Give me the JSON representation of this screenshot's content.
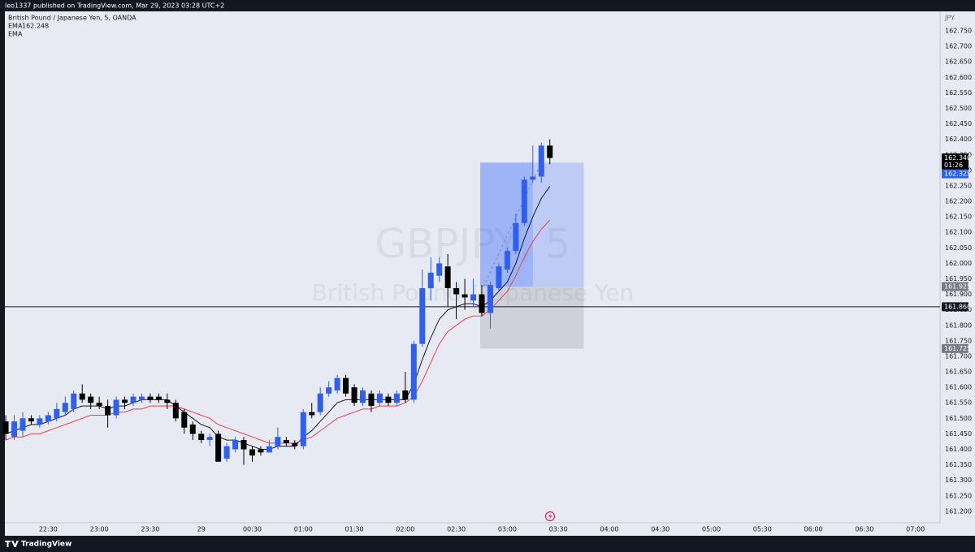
{
  "header": {
    "text": "leo1337 published on TradingView.com, Mar 29, 2023 03:28 UTC+2"
  },
  "footer": {
    "logo": "TradingView"
  },
  "chart_data": {
    "type": "candlestick",
    "title": "British Pound / Japanese Yen, 5, OANDA",
    "watermark": {
      "symbol": "GBPJPY, 5",
      "name": "British Pound / Japanese Yen"
    },
    "currency": "JPY",
    "up_color": "#2f5ff0",
    "down_color": "#000000",
    "categories": [
      null,
      null,
      null,
      null,
      null,
      "22:30",
      null,
      null,
      null,
      null,
      null,
      "23:00",
      null,
      null,
      null,
      null,
      null,
      "23:30",
      null,
      null,
      null,
      null,
      null,
      "29",
      null,
      null,
      null,
      null,
      null,
      "00:30",
      null,
      null,
      null,
      null,
      null,
      "01:00",
      null,
      null,
      null,
      null,
      null,
      "01:30",
      null,
      null,
      null,
      null,
      null,
      "02:00",
      null,
      null,
      null,
      null,
      null,
      "02:30",
      null,
      null,
      null,
      null,
      null,
      "03:00",
      null,
      null,
      null,
      null,
      null,
      "03:30",
      null,
      null,
      null,
      null,
      null,
      "04:00",
      null,
      null,
      null,
      null,
      null,
      "04:30",
      null,
      null,
      null,
      null,
      null,
      "05:00",
      null,
      null,
      null,
      null,
      null,
      "05:30",
      null,
      null,
      null,
      null,
      null,
      "06:00",
      null,
      null,
      null,
      null,
      null,
      "06:30",
      null,
      null,
      null,
      null,
      null,
      "07:00"
    ],
    "open": [
      161.49,
      161.44,
      161.46,
      161.5,
      161.48,
      161.49,
      161.5,
      161.52,
      161.53,
      161.58,
      161.57,
      161.55,
      161.54,
      161.51,
      161.56,
      161.55,
      161.56,
      161.57,
      161.57,
      161.56,
      161.55,
      161.52,
      161.48,
      161.45,
      161.43,
      161.45,
      161.37,
      161.4,
      161.43,
      161.4,
      161.4,
      161.39,
      161.41,
      161.43,
      161.42,
      161.41,
      161.52,
      161.52,
      161.58,
      161.59,
      161.63,
      161.6,
      161.55,
      161.58,
      161.55,
      161.57,
      161.55,
      161.59,
      161.56,
      161.74,
      161.92,
      161.96,
      161.99,
      161.92,
      161.9,
      161.88,
      161.9,
      161.84,
      161.92,
      161.98,
      162.04,
      162.13,
      162.27,
      162.28,
      162.38,
      null,
      null,
      null,
      null,
      null,
      null,
      null,
      null,
      null,
      null,
      null,
      null,
      null,
      null,
      null,
      null,
      null,
      null,
      null,
      null,
      null,
      null,
      null,
      null,
      null,
      null,
      null,
      null,
      null,
      null,
      null,
      null,
      null,
      null,
      null,
      null,
      null,
      null,
      null,
      null,
      null,
      null,
      null
    ],
    "high": [
      161.51,
      161.51,
      161.52,
      161.51,
      161.51,
      161.52,
      161.55,
      161.57,
      161.59,
      161.61,
      161.58,
      161.57,
      161.56,
      161.57,
      161.57,
      161.58,
      161.58,
      161.58,
      161.58,
      161.58,
      161.56,
      161.53,
      161.49,
      161.46,
      161.45,
      161.46,
      161.42,
      161.44,
      161.44,
      161.41,
      161.41,
      161.43,
      161.47,
      161.44,
      161.43,
      161.53,
      161.55,
      161.6,
      161.62,
      161.64,
      161.64,
      161.61,
      161.6,
      161.59,
      161.59,
      161.58,
      161.59,
      161.65,
      161.75,
      161.98,
      162.02,
      162.02,
      162.03,
      161.94,
      161.95,
      161.95,
      161.93,
      161.94,
      162.0,
      162.05,
      162.16,
      162.28,
      162.38,
      162.39,
      162.4,
      null,
      null,
      null,
      null,
      null,
      null,
      null,
      null,
      null,
      null,
      null,
      null,
      null,
      null,
      null,
      null,
      null,
      null,
      null,
      null,
      null,
      null,
      null,
      null,
      null,
      null,
      null,
      null,
      null,
      null,
      null,
      null,
      null,
      null,
      null,
      null,
      null,
      null,
      null,
      null,
      null,
      null,
      null
    ],
    "low": [
      161.43,
      161.43,
      161.44,
      161.48,
      161.47,
      161.48,
      161.49,
      161.51,
      161.52,
      161.55,
      161.53,
      161.53,
      161.47,
      161.5,
      161.53,
      161.54,
      161.55,
      161.55,
      161.55,
      161.53,
      161.49,
      161.45,
      161.43,
      161.42,
      161.41,
      161.36,
      161.36,
      161.39,
      161.35,
      161.36,
      161.38,
      161.39,
      161.4,
      161.41,
      161.4,
      161.4,
      161.5,
      161.51,
      161.57,
      161.58,
      161.57,
      161.54,
      161.54,
      161.52,
      161.54,
      161.54,
      161.54,
      161.55,
      161.55,
      161.73,
      161.88,
      161.94,
      161.86,
      161.82,
      161.85,
      161.86,
      161.83,
      161.79,
      161.91,
      161.97,
      162.03,
      162.12,
      162.26,
      162.26,
      162.32,
      null,
      null,
      null,
      null,
      null,
      null,
      null,
      null,
      null,
      null,
      null,
      null,
      null,
      null,
      null,
      null,
      null,
      null,
      null,
      null,
      null,
      null,
      null,
      null,
      null,
      null,
      null,
      null,
      null,
      null,
      null,
      null,
      null,
      null,
      null,
      null,
      null,
      null,
      null,
      null,
      null,
      null,
      null
    ],
    "close": [
      161.45,
      161.49,
      161.5,
      161.49,
      161.5,
      161.51,
      161.53,
      161.55,
      161.58,
      161.56,
      161.55,
      161.54,
      161.51,
      161.56,
      161.55,
      161.57,
      161.57,
      161.56,
      161.56,
      161.55,
      161.5,
      161.47,
      161.45,
      161.43,
      161.44,
      161.36,
      161.41,
      161.43,
      161.4,
      161.38,
      161.39,
      161.41,
      161.44,
      161.42,
      161.41,
      161.52,
      161.51,
      161.58,
      161.6,
      161.63,
      161.58,
      161.55,
      161.59,
      161.54,
      161.58,
      161.55,
      161.58,
      161.56,
      161.74,
      161.92,
      161.97,
      162.0,
      161.92,
      161.9,
      161.89,
      161.9,
      161.84,
      161.93,
      161.99,
      162.04,
      162.13,
      162.27,
      162.28,
      162.38,
      162.34,
      null,
      null,
      null,
      null,
      null,
      null,
      null,
      null,
      null,
      null,
      null,
      null,
      null,
      null,
      null,
      null,
      null,
      null,
      null,
      null,
      null,
      null,
      null,
      null,
      null,
      null,
      null,
      null,
      null,
      null,
      null,
      null,
      null,
      null,
      null,
      null,
      null,
      null,
      null,
      null,
      null,
      null,
      null
    ],
    "series": [
      {
        "name": "EMA",
        "color": "#131722",
        "values": [
          161.45,
          161.46,
          161.47,
          161.48,
          161.48,
          161.49,
          161.5,
          161.51,
          161.53,
          161.54,
          161.54,
          161.54,
          161.53,
          161.54,
          161.54,
          161.55,
          161.56,
          161.56,
          161.56,
          161.56,
          161.54,
          161.52,
          161.5,
          161.48,
          161.47,
          161.44,
          161.43,
          161.43,
          161.42,
          161.41,
          161.4,
          161.4,
          161.41,
          161.41,
          161.41,
          161.44,
          161.46,
          161.49,
          161.52,
          161.55,
          161.56,
          161.56,
          161.56,
          161.56,
          161.56,
          161.56,
          161.56,
          161.56,
          161.61,
          161.69,
          161.76,
          161.82,
          161.85,
          161.86,
          161.87,
          161.87,
          161.86,
          161.88,
          161.91,
          161.94,
          162.0,
          162.08,
          162.15,
          162.21,
          162.248,
          null,
          null,
          null,
          null,
          null,
          null,
          null,
          null,
          null,
          null,
          null,
          null,
          null,
          null,
          null,
          null,
          null,
          null,
          null,
          null,
          null,
          null,
          null,
          null,
          null,
          null,
          null,
          null,
          null,
          null,
          null,
          null,
          null,
          null,
          null,
          null,
          null,
          null,
          null,
          null,
          null,
          null,
          null
        ]
      },
      {
        "name": "EMA",
        "color": "#e8424f",
        "values": [
          161.43,
          161.44,
          161.44,
          161.45,
          161.45,
          161.46,
          161.47,
          161.48,
          161.49,
          161.5,
          161.51,
          161.51,
          161.51,
          161.52,
          161.52,
          161.53,
          161.53,
          161.54,
          161.54,
          161.54,
          161.54,
          161.53,
          161.52,
          161.51,
          161.5,
          161.48,
          161.47,
          161.46,
          161.45,
          161.44,
          161.43,
          161.42,
          161.42,
          161.42,
          161.42,
          161.43,
          161.44,
          161.46,
          161.48,
          161.5,
          161.51,
          161.52,
          161.53,
          161.53,
          161.54,
          161.54,
          161.54,
          161.55,
          161.57,
          161.62,
          161.68,
          161.74,
          161.78,
          161.8,
          161.82,
          161.83,
          161.83,
          161.85,
          161.88,
          161.91,
          161.96,
          162.02,
          162.07,
          162.11,
          162.14,
          null,
          null,
          null,
          null,
          null,
          null,
          null,
          null,
          null,
          null,
          null,
          null,
          null,
          null,
          null,
          null,
          null,
          null,
          null,
          null,
          null,
          null,
          null,
          null,
          null,
          null,
          null,
          null,
          null,
          null,
          null,
          null,
          null,
          null,
          null,
          null,
          null,
          null,
          null,
          null,
          null,
          null,
          null
        ]
      }
    ],
    "ylim": [
      161.163,
      162.813
    ],
    "yticks": [
      {
        "value": 161.2,
        "label": "161.200"
      },
      {
        "value": 161.25,
        "label": "161.250"
      },
      {
        "value": 161.3,
        "label": "161.300"
      },
      {
        "value": 161.35,
        "label": "161.350"
      },
      {
        "value": 161.4,
        "label": "161.400"
      },
      {
        "value": 161.45,
        "label": "161.450"
      },
      {
        "value": 161.5,
        "label": "161.500"
      },
      {
        "value": 161.55,
        "label": "161.550"
      },
      {
        "value": 161.6,
        "label": "161.600"
      },
      {
        "value": 161.65,
        "label": "161.650"
      },
      {
        "value": 161.7,
        "label": "161.700"
      },
      {
        "value": 161.75,
        "label": "161.750"
      },
      {
        "value": 161.8,
        "label": "161.800"
      },
      {
        "value": 161.85,
        "label": "161.850"
      },
      {
        "value": 161.9,
        "label": "161.900"
      },
      {
        "value": 161.95,
        "label": "161.950"
      },
      {
        "value": 162.0,
        "label": "162.000"
      },
      {
        "value": 162.05,
        "label": "162.050"
      },
      {
        "value": 162.1,
        "label": "162.100"
      },
      {
        "value": 162.15,
        "label": "162.150"
      },
      {
        "value": 162.2,
        "label": "162.200"
      },
      {
        "value": 162.25,
        "label": "162.250"
      },
      {
        "value": 162.3,
        "label": "162.300"
      },
      {
        "value": 162.35,
        "label": "162.350"
      },
      {
        "value": 162.4,
        "label": "162.400"
      },
      {
        "value": 162.45,
        "label": "162.450"
      },
      {
        "value": 162.5,
        "label": "162.500"
      },
      {
        "value": 162.55,
        "label": "162.550"
      },
      {
        "value": 162.6,
        "label": "162.600"
      },
      {
        "value": 162.65,
        "label": "162.650"
      },
      {
        "value": 162.7,
        "label": "162.700"
      },
      {
        "value": 162.75,
        "label": "162.750"
      }
    ],
    "grid": false,
    "hline": {
      "value": 161.86,
      "label": "161.860"
    },
    "position": {
      "target": {
        "value": 162.325,
        "label": "162.325"
      },
      "entry": {
        "value": 161.925,
        "label": "161.925"
      },
      "stop": {
        "value": 161.725,
        "label": "161.725"
      }
    },
    "last_price": {
      "value": 162.34,
      "label": "162.340",
      "countdown": "01:26"
    }
  }
}
